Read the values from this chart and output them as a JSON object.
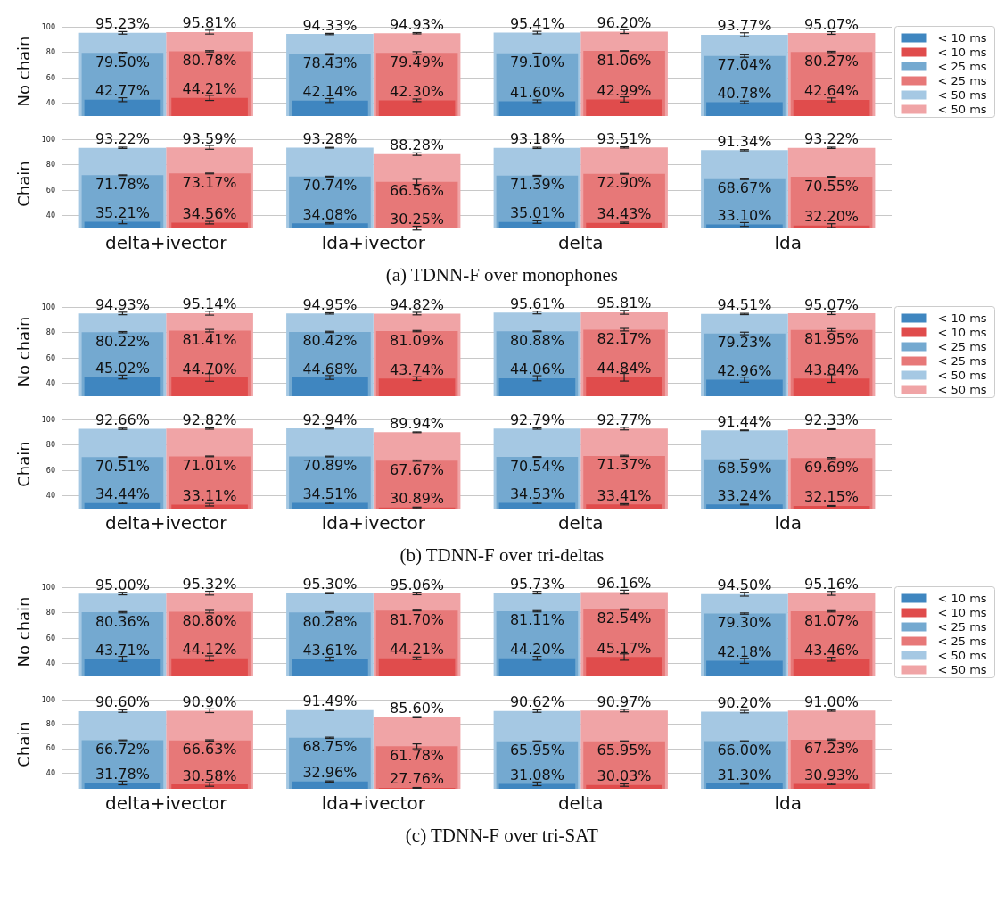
{
  "chart_data": [
    {
      "type": "bar",
      "ylabel": "No chain",
      "ylim": [
        30,
        100
      ],
      "yticks": [
        40,
        60,
        80,
        100
      ],
      "grid": "y",
      "legend": "right",
      "tick_labels": "y",
      "series": [
        {
          "name": "< 10 ms",
          "color": "#3f86c0",
          "values": [
            42.77,
            42.14,
            41.6,
            40.78
          ],
          "value_labels": [
            "42.77%",
            "42.14%",
            "41.60%",
            "40.78%"
          ],
          "errors": [
            1.5,
            1.5,
            1,
            1
          ]
        },
        {
          "name": "< 10 ms",
          "color": "#e04c4c",
          "values": [
            44.21,
            42.3,
            42.99,
            42.64
          ],
          "value_labels": [
            "44.21%",
            "42.30%",
            "42.99%",
            "42.64%"
          ],
          "errors": [
            2,
            1,
            2,
            1.5
          ]
        },
        {
          "name": "< 25 ms",
          "color": "#74a9d0",
          "values": [
            79.5,
            78.43,
            79.1,
            77.04
          ],
          "value_labels": [
            "79.50%",
            "78.43%",
            "79.10%",
            "77.04%"
          ],
          "errors": [
            0.5,
            0.5,
            0.3,
            1
          ]
        },
        {
          "name": "< 25 ms",
          "color": "#e77878",
          "values": [
            80.78,
            79.49,
            81.06,
            80.27
          ],
          "value_labels": [
            "80.78%",
            "79.49%",
            "81.06%",
            "80.27%"
          ],
          "errors": [
            0.5,
            1,
            0.3,
            0.5
          ]
        },
        {
          "name": "< 50 ms",
          "color": "#a5c8e3",
          "values": [
            95.23,
            94.33,
            95.41,
            93.77
          ],
          "value_labels": [
            "95.23%",
            "94.33%",
            "95.41%",
            "93.77%"
          ],
          "errors": [
            1,
            0.5,
            1,
            1.5
          ]
        },
        {
          "name": "< 50 ms",
          "color": "#f0a4a6",
          "values": [
            95.81,
            94.93,
            96.2,
            95.07
          ],
          "value_labels": [
            "95.81%",
            "94.93%",
            "96.20%",
            "95.07%"
          ],
          "errors": [
            1.5,
            0.5,
            1.5,
            1
          ]
        }
      ]
    },
    {
      "type": "bar",
      "ylabel": "Chain",
      "categories": [
        "delta+ivector",
        "lda+ivector",
        "delta",
        "lda"
      ],
      "ylim": [
        30,
        100
      ],
      "yticks": [
        40,
        60,
        80,
        100
      ],
      "grid": "y",
      "annotations": [
        "(a) TDNN-F over monophones"
      ],
      "series": [
        {
          "color": "#3f86c0",
          "values": [
            35.21,
            34.08,
            35.01,
            33.1
          ],
          "value_labels": [
            "35.21%",
            "34.08%",
            "35.01%",
            "33.10%"
          ],
          "errors": [
            1.5,
            0.5,
            1,
            1.5
          ]
        },
        {
          "color": "#e04c4c",
          "values": [
            34.56,
            30.25,
            34.43,
            32.2
          ],
          "value_labels": [
            "34.56%",
            "30.25%",
            "34.43%",
            "32.20%"
          ],
          "errors": [
            1,
            1.5,
            0.5,
            1.5
          ]
        },
        {
          "color": "#74a9d0",
          "values": [
            71.78,
            70.74,
            71.39,
            68.67
          ],
          "value_labels": [
            "71.78%",
            "70.74%",
            "71.39%",
            "68.67%"
          ],
          "errors": [
            0.3,
            0.3,
            0.3,
            0.3
          ]
        },
        {
          "color": "#e77878",
          "values": [
            73.17,
            66.56,
            72.9,
            70.55
          ],
          "value_labels": [
            "73.17%",
            "66.56%",
            "72.90%",
            "70.55%"
          ],
          "errors": [
            0.3,
            2,
            0.3,
            0.3
          ]
        },
        {
          "color": "#a5c8e3",
          "values": [
            93.22,
            93.28,
            93.18,
            91.34
          ],
          "value_labels": [
            "93.22%",
            "93.28%",
            "93.18%",
            "91.34%"
          ],
          "errors": [
            0.5,
            0.3,
            0.5,
            0.5
          ]
        },
        {
          "color": "#f0a4a6",
          "values": [
            93.59,
            88.28,
            93.51,
            93.22
          ],
          "value_labels": [
            "93.59%",
            "88.28%",
            "93.51%",
            "93.22%"
          ],
          "errors": [
            1.5,
            1,
            0.5,
            0.5
          ]
        }
      ]
    },
    {
      "type": "bar",
      "ylabel": "No chain",
      "ylim": [
        30,
        100
      ],
      "yticks": [
        40,
        60,
        80,
        100
      ],
      "grid": "y",
      "legend": "right",
      "tick_labels": "y",
      "series": [
        {
          "name": "< 10 ms",
          "color": "#3f86c0",
          "values": [
            45.02,
            44.68,
            44.06,
            42.96
          ],
          "value_labels": [
            "45.02%",
            "44.68%",
            "44.06%",
            "42.96%"
          ],
          "errors": [
            1.5,
            1.5,
            2,
            2
          ]
        },
        {
          "name": "< 10 ms",
          "color": "#e04c4c",
          "values": [
            44.7,
            43.74,
            44.84,
            43.84
          ],
          "value_labels": [
            "44.70%",
            "43.74%",
            "44.84%",
            "43.84%"
          ],
          "errors": [
            3,
            1.5,
            3,
            3
          ]
        },
        {
          "name": "< 25 ms",
          "color": "#74a9d0",
          "values": [
            80.22,
            80.42,
            80.88,
            79.23
          ],
          "value_labels": [
            "80.22%",
            "80.42%",
            "80.88%",
            "79.23%"
          ],
          "errors": [
            0.5,
            0.5,
            0.3,
            1
          ]
        },
        {
          "name": "< 25 ms",
          "color": "#e77878",
          "values": [
            81.41,
            81.09,
            82.17,
            81.95
          ],
          "value_labels": [
            "81.41%",
            "81.09%",
            "82.17%",
            "81.95%"
          ],
          "errors": [
            1,
            0.5,
            1,
            1
          ]
        },
        {
          "name": "< 50 ms",
          "color": "#a5c8e3",
          "values": [
            94.93,
            94.95,
            95.61,
            94.51
          ],
          "value_labels": [
            "94.93%",
            "94.95%",
            "95.61%",
            "94.51%"
          ],
          "errors": [
            1,
            0.5,
            1,
            0.5
          ]
        },
        {
          "name": "< 50 ms",
          "color": "#f0a4a6",
          "values": [
            95.14,
            94.82,
            95.81,
            95.07
          ],
          "value_labels": [
            "95.14%",
            "94.82%",
            "95.81%",
            "95.07%"
          ],
          "errors": [
            1.5,
            1,
            1.5,
            1
          ]
        }
      ]
    },
    {
      "type": "bar",
      "ylabel": "Chain",
      "categories": [
        "delta+ivector",
        "lda+ivector",
        "delta",
        "lda"
      ],
      "ylim": [
        30,
        100
      ],
      "yticks": [
        40,
        60,
        80,
        100
      ],
      "grid": "y",
      "annotations": [
        "(b) TDNN-F over tri-deltas"
      ],
      "series": [
        {
          "color": "#3f86c0",
          "values": [
            34.44,
            34.51,
            34.53,
            33.24
          ],
          "value_labels": [
            "34.44%",
            "34.51%",
            "34.53%",
            "33.24%"
          ],
          "errors": [
            0.5,
            0.5,
            0.5,
            0.3
          ]
        },
        {
          "color": "#e04c4c",
          "values": [
            33.11,
            30.89,
            33.41,
            32.15
          ],
          "value_labels": [
            "33.11%",
            "30.89%",
            "33.41%",
            "32.15%"
          ],
          "errors": [
            1,
            0.3,
            0.5,
            0.3
          ]
        },
        {
          "color": "#74a9d0",
          "values": [
            70.51,
            70.89,
            70.54,
            68.59
          ],
          "value_labels": [
            "70.51%",
            "70.89%",
            "70.54%",
            "68.59%"
          ],
          "errors": [
            0.3,
            0.3,
            0.3,
            0.3
          ]
        },
        {
          "color": "#e77878",
          "values": [
            71.01,
            67.67,
            71.37,
            69.69
          ],
          "value_labels": [
            "71.01%",
            "67.67%",
            "71.37%",
            "69.69%"
          ],
          "errors": [
            0.3,
            0.5,
            0.5,
            0.5
          ]
        },
        {
          "color": "#a5c8e3",
          "values": [
            92.66,
            92.94,
            92.79,
            91.44
          ],
          "value_labels": [
            "92.66%",
            "92.94%",
            "92.79%",
            "91.44%"
          ],
          "errors": [
            0.5,
            0.5,
            0.5,
            0.3
          ]
        },
        {
          "color": "#f0a4a6",
          "values": [
            92.82,
            89.94,
            92.77,
            92.33
          ],
          "value_labels": [
            "92.82%",
            "89.94%",
            "92.77%",
            "92.33%"
          ],
          "errors": [
            0.5,
            0.3,
            1,
            0.3
          ]
        }
      ]
    },
    {
      "type": "bar",
      "ylabel": "No chain",
      "ylim": [
        30,
        100
      ],
      "yticks": [
        40,
        60,
        80,
        100
      ],
      "grid": "y",
      "legend": "right",
      "tick_labels": "y",
      "series": [
        {
          "name": "< 10 ms",
          "color": "#3f86c0",
          "values": [
            43.71,
            43.61,
            44.2,
            42.18
          ],
          "value_labels": [
            "43.71%",
            "43.61%",
            "44.20%",
            "42.18%"
          ],
          "errors": [
            2,
            1.5,
            1.5,
            2
          ]
        },
        {
          "name": "< 10 ms",
          "color": "#e04c4c",
          "values": [
            44.12,
            44.21,
            45.17,
            43.46
          ],
          "value_labels": [
            "44.12%",
            "44.21%",
            "45.17%",
            "43.46%"
          ],
          "errors": [
            2,
            1,
            2.5,
            1.5
          ]
        },
        {
          "name": "< 25 ms",
          "color": "#74a9d0",
          "values": [
            80.36,
            80.28,
            81.11,
            79.3
          ],
          "value_labels": [
            "80.36%",
            "80.28%",
            "81.11%",
            "79.30%"
          ],
          "errors": [
            0.5,
            0.5,
            0.5,
            0.5
          ]
        },
        {
          "name": "< 25 ms",
          "color": "#e77878",
          "values": [
            80.8,
            81.7,
            82.54,
            81.07
          ],
          "value_labels": [
            "80.80%",
            "81.70%",
            "82.54%",
            "81.07%"
          ],
          "errors": [
            1,
            0.3,
            0.5,
            0.5
          ]
        },
        {
          "name": "< 50 ms",
          "color": "#a5c8e3",
          "values": [
            95.0,
            95.3,
            95.73,
            94.5
          ],
          "value_labels": [
            "95.00%",
            "95.30%",
            "95.73%",
            "94.50%"
          ],
          "errors": [
            1,
            0.5,
            1,
            1.5
          ]
        },
        {
          "name": "< 50 ms",
          "color": "#f0a4a6",
          "values": [
            95.32,
            95.06,
            96.16,
            95.16
          ],
          "value_labels": [
            "95.32%",
            "95.06%",
            "96.16%",
            "95.16%"
          ],
          "errors": [
            1.5,
            1,
            1.5,
            1.5
          ]
        }
      ]
    },
    {
      "type": "bar",
      "ylabel": "Chain",
      "categories": [
        "delta+ivector",
        "lda+ivector",
        "delta",
        "lda"
      ],
      "ylim": [
        27,
        100
      ],
      "yticks": [
        40,
        60,
        80,
        100
      ],
      "grid": "y",
      "annotations": [
        "(c) TDNN-F over tri-SAT"
      ],
      "series": [
        {
          "color": "#3f86c0",
          "values": [
            31.78,
            32.96,
            31.08,
            31.3
          ],
          "value_labels": [
            "31.78%",
            "32.96%",
            "31.08%",
            "31.30%"
          ],
          "errors": [
            1.5,
            0.5,
            1.5,
            0.5
          ]
        },
        {
          "color": "#e04c4c",
          "values": [
            30.58,
            27.76,
            30.03,
            30.93
          ],
          "value_labels": [
            "30.58%",
            "27.76%",
            "30.03%",
            "30.93%"
          ],
          "errors": [
            1.5,
            0.3,
            1,
            0.5
          ]
        },
        {
          "color": "#74a9d0",
          "values": [
            66.72,
            68.75,
            65.95,
            66.0
          ],
          "value_labels": [
            "66.72%",
            "68.75%",
            "65.95%",
            "66.00%"
          ],
          "errors": [
            0.3,
            0.5,
            0.3,
            0.3
          ]
        },
        {
          "color": "#e77878",
          "values": [
            66.63,
            61.78,
            65.95,
            67.23
          ],
          "value_labels": [
            "66.63%",
            "61.78%",
            "65.95%",
            "67.23%"
          ],
          "errors": [
            0.5,
            2,
            0.3,
            0.5
          ]
        },
        {
          "color": "#a5c8e3",
          "values": [
            90.6,
            91.49,
            90.62,
            90.2
          ],
          "value_labels": [
            "90.60%",
            "91.49%",
            "90.62%",
            "90.20%"
          ],
          "errors": [
            1,
            0.5,
            1,
            1
          ]
        },
        {
          "color": "#f0a4a6",
          "values": [
            90.9,
            85.6,
            90.97,
            91.0
          ],
          "value_labels": [
            "90.90%",
            "85.60%",
            "90.97%",
            "91.00%"
          ],
          "errors": [
            1.5,
            0.5,
            1,
            0.5
          ]
        }
      ]
    }
  ]
}
